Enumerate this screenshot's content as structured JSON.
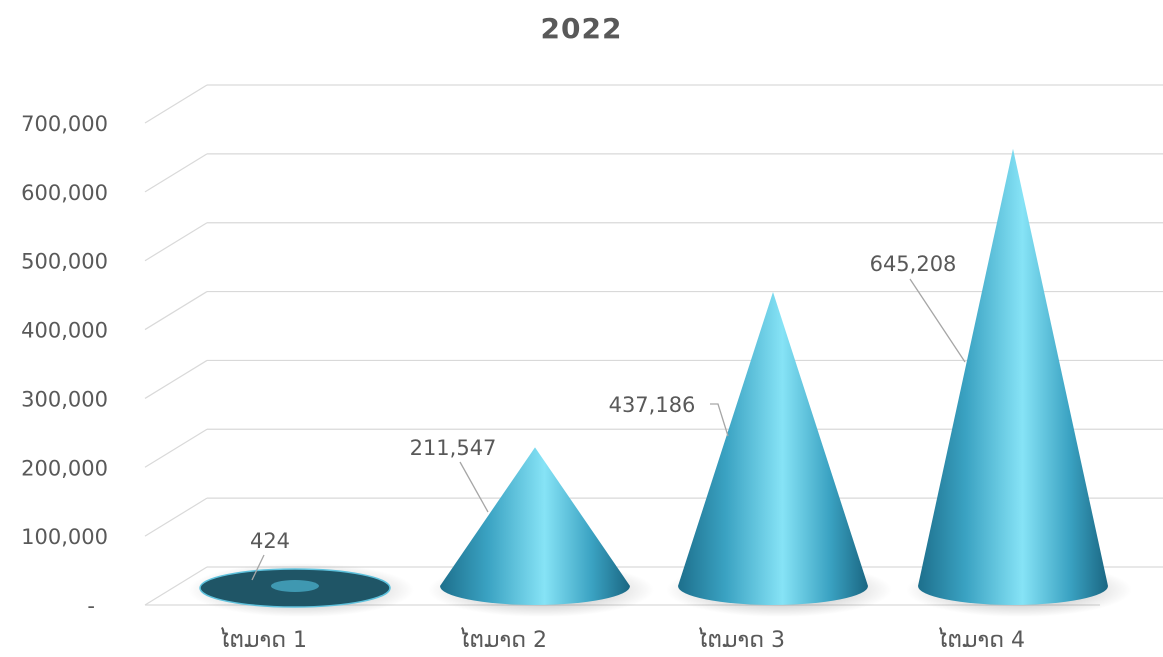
{
  "chart_data": {
    "type": "bar",
    "style": "3d-cone",
    "title": "2022",
    "categories": [
      "ໄຕມາດ 1",
      "ໄຕມາດ 2",
      "ໄຕມາດ 3",
      "ໄຕມາດ 4"
    ],
    "values": [
      424,
      211547,
      437186,
      645208
    ],
    "value_labels": [
      "424",
      "211,547",
      "437,186",
      "645,208"
    ],
    "ylim": [
      0,
      700000
    ],
    "y_ticks": [
      0,
      100000,
      200000,
      300000,
      400000,
      500000,
      600000,
      700000
    ],
    "y_tick_labels": [
      "-",
      "100,000",
      "200,000",
      "300,000",
      "400,000",
      "500,000",
      "600,000",
      "700,000"
    ],
    "xlabel": "",
    "ylabel": "",
    "grid": true,
    "legend": "none",
    "colors": {
      "cone": "#3fa9c9",
      "cone_light": "#7fdcf2",
      "cone_dark": "#1d6f8c",
      "disc": "#1f5566",
      "grid": "#d9d9d9",
      "text": "#595959"
    }
  }
}
